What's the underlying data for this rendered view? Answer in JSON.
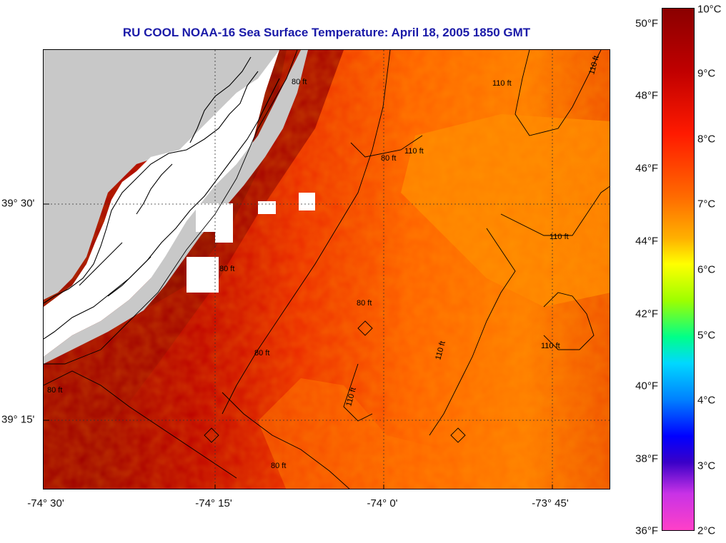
{
  "title": "RU COOL  NOAA-16  Sea Surface Temperature:  April 18, 2005 1850 GMT",
  "x_axis": {
    "ticks": [
      "-74° 30'",
      "-74° 15'",
      "-74° 0'",
      "-73° 45'"
    ]
  },
  "y_axis": {
    "ticks": [
      "39° 30'",
      "39° 15'"
    ]
  },
  "contour_labels": [
    "80 ft",
    "110 ft",
    "110 ft",
    "80 ft",
    "110 ft",
    "110 ft",
    "80 ft",
    "80 ft",
    "110 ft",
    "110 ft",
    "110 ft",
    "80 ft",
    "80 ft",
    "80 ft"
  ],
  "colorbar": {
    "fahrenheit": [
      "50°F",
      "48°F",
      "46°F",
      "44°F",
      "42°F",
      "40°F",
      "38°F",
      "36°F"
    ],
    "celsius": [
      "10°C",
      "9°C",
      "8°C",
      "7°C",
      "6°C",
      "5°C",
      "4°C",
      "3°C",
      "2°C"
    ]
  },
  "colors": {
    "title": "#1a1aa8",
    "land": "#c8c8c8",
    "cloud_mask": "#ffffff",
    "sst_warm": "#8b0000",
    "sst_mid": "#e01a00",
    "sst_cool": "#ff7a00"
  }
}
